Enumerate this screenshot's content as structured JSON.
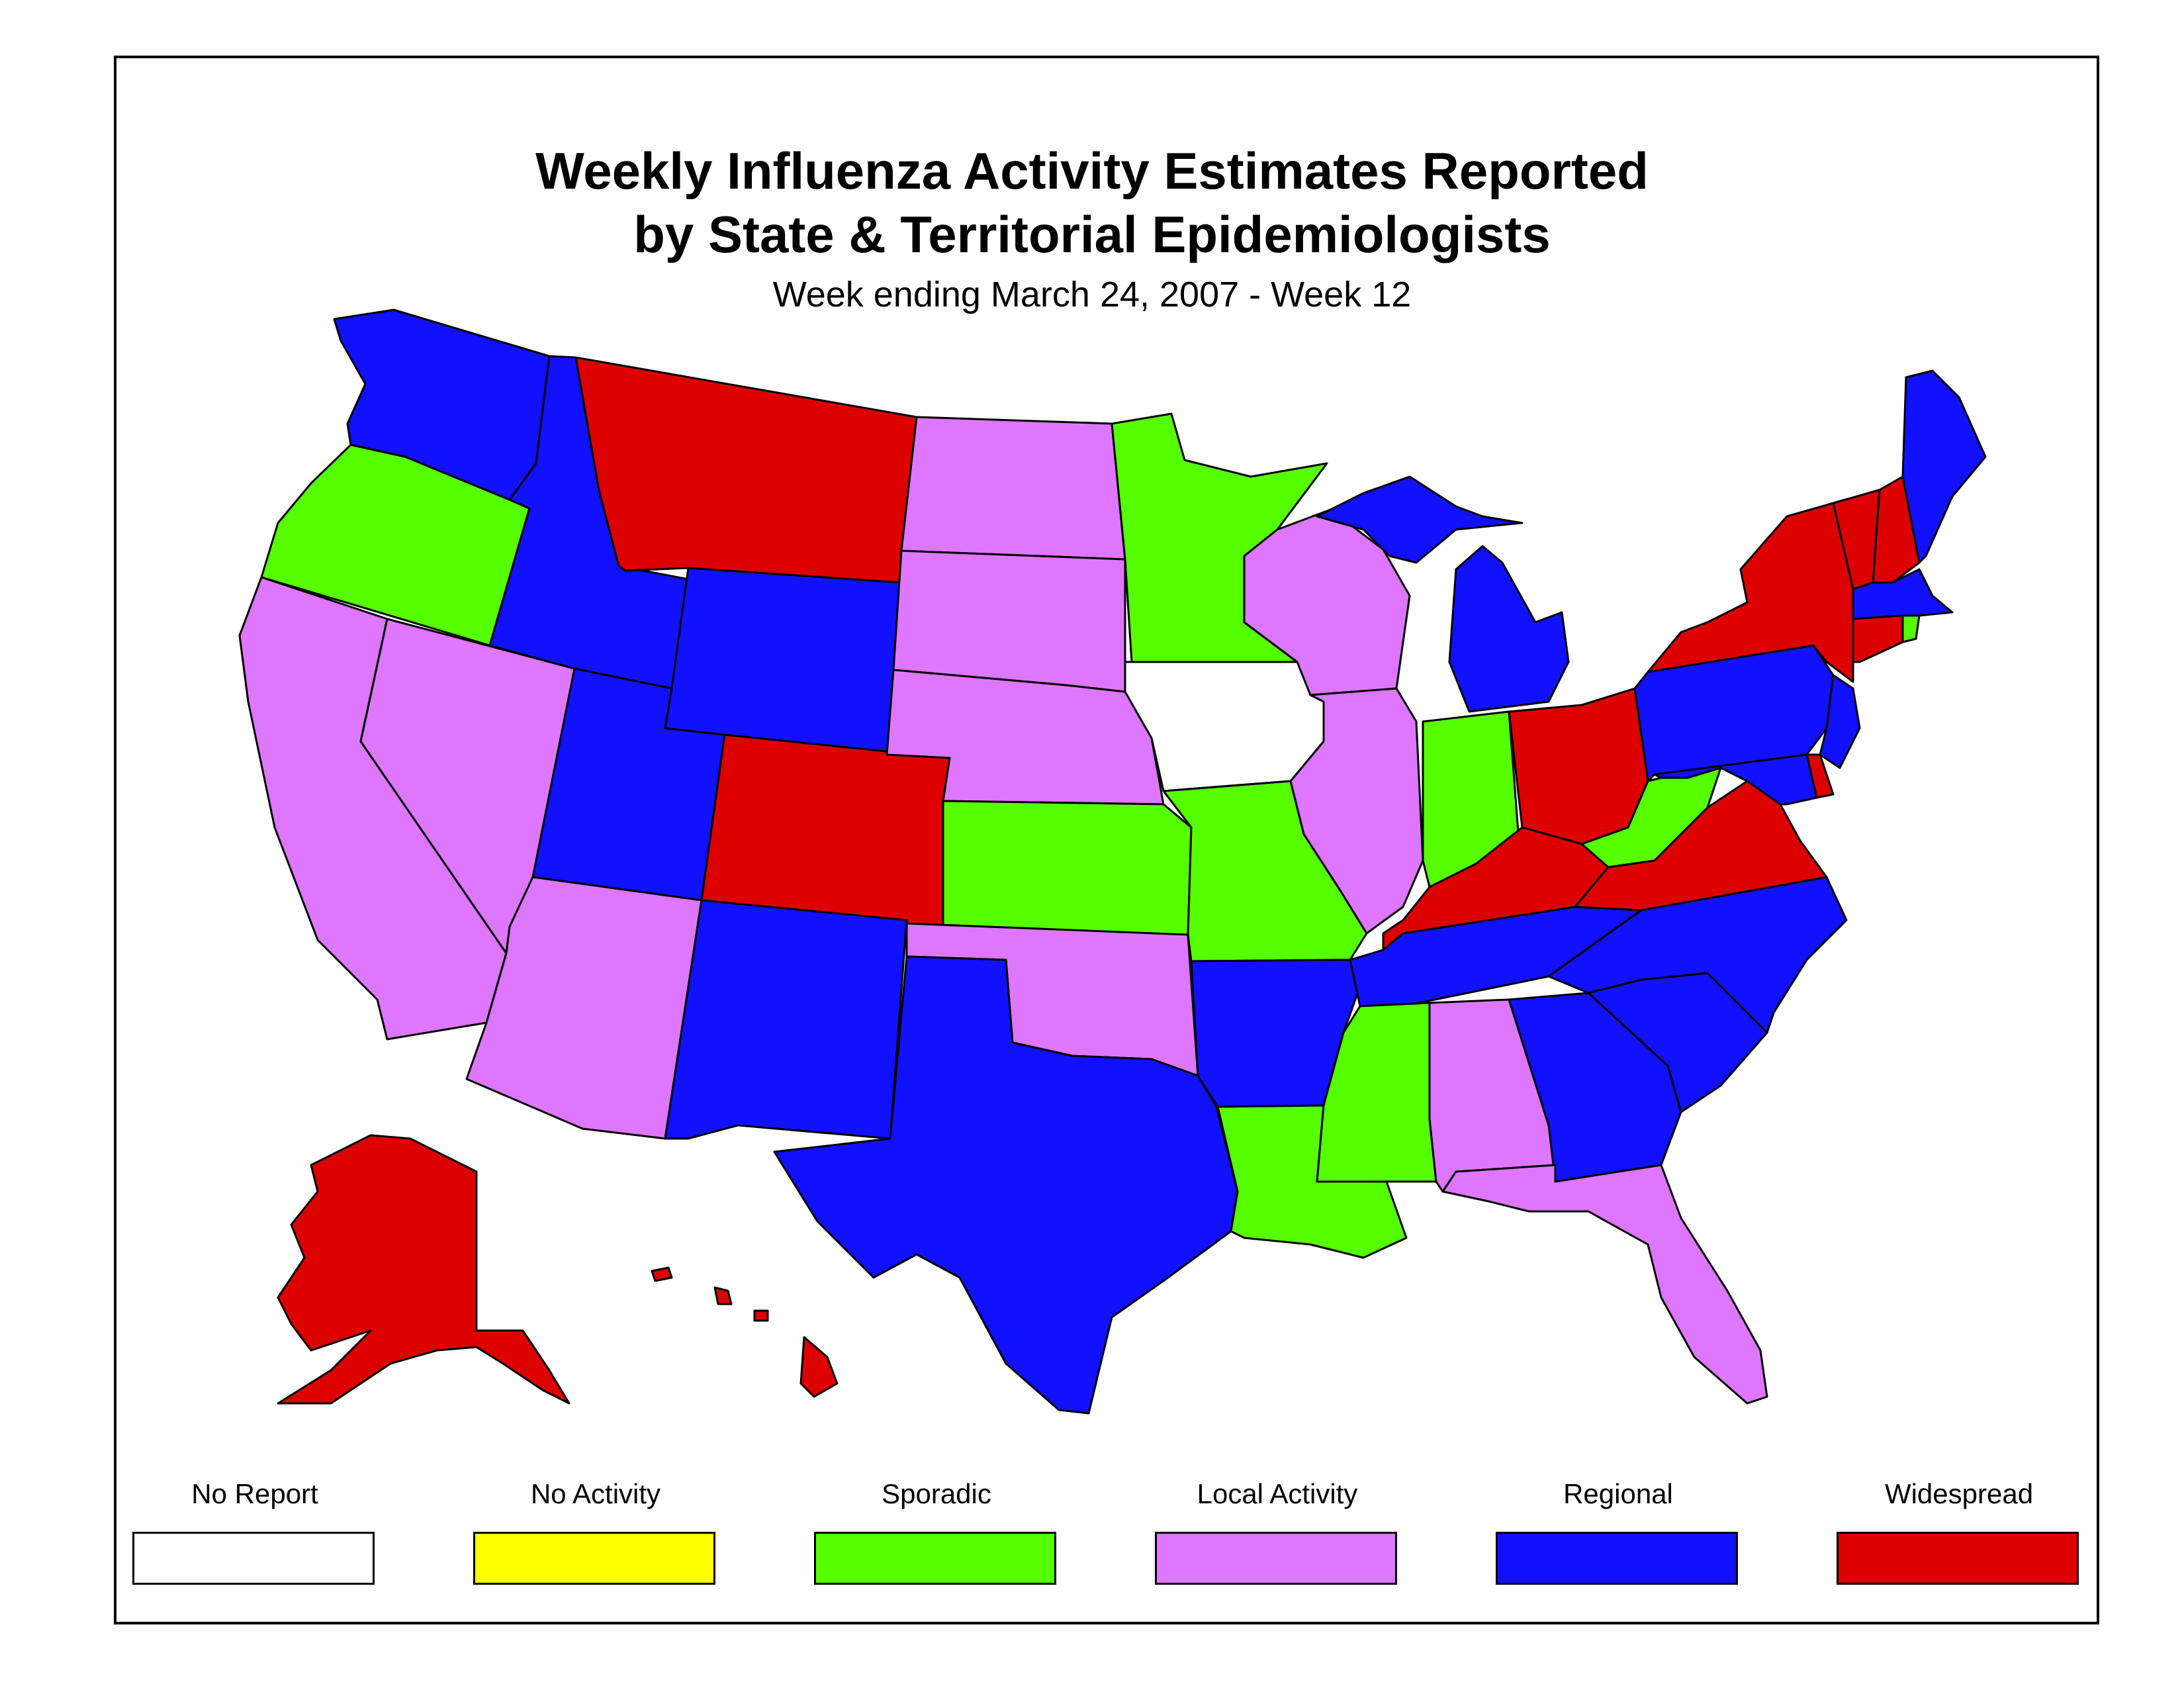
{
  "title": {
    "line1": "Weekly Influenza Activity Estimates Reported",
    "line2": "by State & Territorial Epidemiologists"
  },
  "subtitle": "Week ending March 24, 2007 - Week 12",
  "legend": [
    {
      "label": "No Report",
      "color": "#ffffff"
    },
    {
      "label": "No Activity",
      "color": "#ffff00"
    },
    {
      "label": "Sporadic",
      "color": "#55ff00"
    },
    {
      "label": "Local Activity",
      "color": "#dd77ff"
    },
    {
      "label": "Regional",
      "color": "#1111ff"
    },
    {
      "label": "Widespread",
      "color": "#dd0000"
    }
  ],
  "map_data": {
    "states": [
      {
        "name": "WA",
        "level": "Regional"
      },
      {
        "name": "OR",
        "level": "Sporadic"
      },
      {
        "name": "CA",
        "level": "Local Activity"
      },
      {
        "name": "NV",
        "level": "Local Activity"
      },
      {
        "name": "ID",
        "level": "Regional"
      },
      {
        "name": "MT",
        "level": "Widespread"
      },
      {
        "name": "WY",
        "level": "Regional"
      },
      {
        "name": "UT",
        "level": "Regional"
      },
      {
        "name": "AZ",
        "level": "Local Activity"
      },
      {
        "name": "CO",
        "level": "Widespread"
      },
      {
        "name": "NM",
        "level": "Regional"
      },
      {
        "name": "ND",
        "level": "Local Activity"
      },
      {
        "name": "SD",
        "level": "Local Activity"
      },
      {
        "name": "NE",
        "level": "Local Activity"
      },
      {
        "name": "KS",
        "level": "Sporadic"
      },
      {
        "name": "OK",
        "level": "Local Activity"
      },
      {
        "name": "TX",
        "level": "Regional"
      },
      {
        "name": "MN",
        "level": "Sporadic"
      },
      {
        "name": "IA",
        "level": "No Report"
      },
      {
        "name": "MO",
        "level": "Sporadic"
      },
      {
        "name": "AR",
        "level": "Regional"
      },
      {
        "name": "LA",
        "level": "Sporadic"
      },
      {
        "name": "WI",
        "level": "Local Activity"
      },
      {
        "name": "IL",
        "level": "Local Activity"
      },
      {
        "name": "MI",
        "level": "Regional"
      },
      {
        "name": "IN",
        "level": "Sporadic"
      },
      {
        "name": "OH",
        "level": "Widespread"
      },
      {
        "name": "KY",
        "level": "Widespread"
      },
      {
        "name": "TN",
        "level": "Regional"
      },
      {
        "name": "MS",
        "level": "Sporadic"
      },
      {
        "name": "AL",
        "level": "Local Activity"
      },
      {
        "name": "GA",
        "level": "Regional"
      },
      {
        "name": "FL",
        "level": "Local Activity"
      },
      {
        "name": "SC",
        "level": "Regional"
      },
      {
        "name": "NC",
        "level": "Regional"
      },
      {
        "name": "VA",
        "level": "Widespread"
      },
      {
        "name": "WV",
        "level": "Sporadic"
      },
      {
        "name": "PA",
        "level": "Regional"
      },
      {
        "name": "NY",
        "level": "Widespread"
      },
      {
        "name": "VT",
        "level": "Widespread"
      },
      {
        "name": "NH",
        "level": "Widespread"
      },
      {
        "name": "ME",
        "level": "Regional"
      },
      {
        "name": "MA",
        "level": "Regional"
      },
      {
        "name": "RI",
        "level": "Sporadic"
      },
      {
        "name": "CT",
        "level": "Widespread"
      },
      {
        "name": "NJ",
        "level": "Regional"
      },
      {
        "name": "DE",
        "level": "Widespread"
      },
      {
        "name": "MD",
        "level": "Regional"
      },
      {
        "name": "AK",
        "level": "Widespread"
      },
      {
        "name": "HI",
        "level": "Widespread"
      }
    ]
  }
}
